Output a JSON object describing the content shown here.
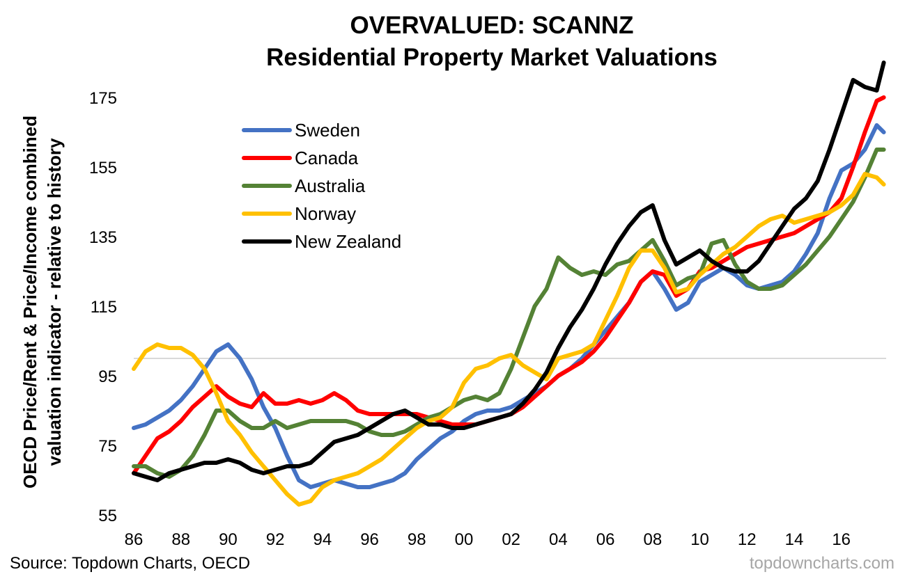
{
  "chart_data": {
    "type": "line",
    "title": "OVERVALUED: SCANNZ",
    "subtitle": "Residential Property Market Valuations",
    "ylabel": "OECD Price/Rent & Price/Income combined valuation indicator - relative to history",
    "ylabel_line1": "OECD Price/Rent & Price/Income combined",
    "ylabel_line2": "valuation indicator - relative to history",
    "xlabel": "",
    "ylim": [
      55,
      185
    ],
    "yticks": [
      55,
      75,
      95,
      115,
      135,
      155,
      175
    ],
    "xlim": [
      1986,
      2017.9
    ],
    "xticks": [
      1986,
      1988,
      1990,
      1992,
      1994,
      1996,
      1998,
      2000,
      2002,
      2004,
      2006,
      2008,
      2010,
      2012,
      2014,
      2016
    ],
    "xtick_labels": [
      "86",
      "88",
      "90",
      "92",
      "94",
      "96",
      "98",
      "00",
      "02",
      "04",
      "06",
      "08",
      "10",
      "12",
      "14",
      "16"
    ],
    "reference_line": 100,
    "legend_position": "top-left",
    "series": [
      {
        "name": "Sweden",
        "color": "#4472C4",
        "x": [
          1986,
          1986.5,
          1987,
          1987.5,
          1988,
          1988.5,
          1989,
          1989.5,
          1990,
          1990.5,
          1991,
          1991.5,
          1992,
          1992.5,
          1993,
          1993.5,
          1994,
          1994.5,
          1995,
          1995.5,
          1996,
          1996.5,
          1997,
          1997.5,
          1998,
          1998.5,
          1999,
          1999.5,
          2000,
          2000.5,
          2001,
          2001.5,
          2002,
          2002.5,
          2003,
          2003.5,
          2004,
          2004.5,
          2005,
          2005.5,
          2006,
          2006.5,
          2007,
          2007.5,
          2008,
          2008.5,
          2009,
          2009.5,
          2010,
          2010.5,
          2011,
          2011.5,
          2012,
          2012.5,
          2013,
          2013.5,
          2014,
          2014.5,
          2015,
          2015.5,
          2016,
          2016.5,
          2017,
          2017.5,
          2017.8
        ],
        "values": [
          80,
          81,
          83,
          85,
          88,
          92,
          97,
          102,
          104,
          100,
          94,
          86,
          80,
          72,
          65,
          63,
          64,
          65,
          64,
          63,
          63,
          64,
          65,
          67,
          71,
          74,
          77,
          79,
          82,
          84,
          85,
          85,
          86,
          88,
          90,
          92,
          95,
          97,
          100,
          104,
          108,
          112,
          116,
          122,
          125,
          120,
          114,
          116,
          122,
          124,
          126,
          124,
          121,
          120,
          121,
          122,
          125,
          130,
          136,
          146,
          154,
          156,
          160,
          167,
          165
        ]
      },
      {
        "name": "Canada",
        "color": "#FF0000",
        "x": [
          1986,
          1986.5,
          1987,
          1987.5,
          1988,
          1988.5,
          1989,
          1989.5,
          1990,
          1990.5,
          1991,
          1991.5,
          1992,
          1992.5,
          1993,
          1993.5,
          1994,
          1994.5,
          1995,
          1995.5,
          1996,
          1996.5,
          1997,
          1997.5,
          1998,
          1998.5,
          1999,
          1999.5,
          2000,
          2000.5,
          2001,
          2001.5,
          2002,
          2002.5,
          2003,
          2003.5,
          2004,
          2004.5,
          2005,
          2005.5,
          2006,
          2006.5,
          2007,
          2007.5,
          2008,
          2008.5,
          2009,
          2009.5,
          2010,
          2010.5,
          2011,
          2011.5,
          2012,
          2012.5,
          2013,
          2013.5,
          2014,
          2014.5,
          2015,
          2015.5,
          2016,
          2016.5,
          2017,
          2017.5,
          2017.8
        ],
        "values": [
          67,
          72,
          77,
          79,
          82,
          86,
          89,
          92,
          89,
          87,
          86,
          90,
          87,
          87,
          88,
          87,
          88,
          90,
          88,
          85,
          84,
          84,
          84,
          84,
          84,
          83,
          82,
          81,
          81,
          81,
          82,
          83,
          84,
          86,
          89,
          92,
          95,
          97,
          99,
          102,
          106,
          111,
          116,
          122,
          125,
          124,
          118,
          120,
          125,
          126,
          128,
          130,
          132,
          133,
          134,
          135,
          136,
          138,
          140,
          142,
          146,
          155,
          165,
          174,
          175
        ]
      },
      {
        "name": "Australia",
        "color": "#548235",
        "x": [
          1986,
          1986.5,
          1987,
          1987.5,
          1988,
          1988.5,
          1989,
          1989.5,
          1990,
          1990.5,
          1991,
          1991.5,
          1992,
          1992.5,
          1993,
          1993.5,
          1994,
          1994.5,
          1995,
          1995.5,
          1996,
          1996.5,
          1997,
          1997.5,
          1998,
          1998.5,
          1999,
          1999.5,
          2000,
          2000.5,
          2001,
          2001.5,
          2002,
          2002.5,
          2003,
          2003.5,
          2004,
          2004.5,
          2005,
          2005.5,
          2006,
          2006.5,
          2007,
          2007.5,
          2008,
          2008.5,
          2009,
          2009.5,
          2010,
          2010.5,
          2011,
          2011.5,
          2012,
          2012.5,
          2013,
          2013.5,
          2014,
          2014.5,
          2015,
          2015.5,
          2016,
          2016.5,
          2017,
          2017.5,
          2017.8
        ],
        "values": [
          69,
          69,
          67,
          66,
          68,
          72,
          78,
          85,
          85,
          82,
          80,
          80,
          82,
          80,
          81,
          82,
          82,
          82,
          82,
          81,
          79,
          78,
          78,
          79,
          81,
          83,
          84,
          86,
          88,
          89,
          88,
          90,
          97,
          106,
          115,
          120,
          129,
          126,
          124,
          125,
          124,
          127,
          128,
          131,
          134,
          128,
          121,
          123,
          124,
          133,
          134,
          127,
          122,
          120,
          120,
          121,
          124,
          127,
          131,
          135,
          140,
          145,
          152,
          160,
          160
        ]
      },
      {
        "name": "Norway",
        "color": "#FFC000",
        "x": [
          1986,
          1986.5,
          1987,
          1987.5,
          1988,
          1988.5,
          1989,
          1989.5,
          1990,
          1990.5,
          1991,
          1991.5,
          1992,
          1992.5,
          1993,
          1993.5,
          1994,
          1994.5,
          1995,
          1995.5,
          1996,
          1996.5,
          1997,
          1997.5,
          1998,
          1998.5,
          1999,
          1999.5,
          2000,
          2000.5,
          2001,
          2001.5,
          2002,
          2002.5,
          2003,
          2003.5,
          2004,
          2004.5,
          2005,
          2005.5,
          2006,
          2006.5,
          2007,
          2007.5,
          2008,
          2008.5,
          2009,
          2009.5,
          2010,
          2010.5,
          2011,
          2011.5,
          2012,
          2012.5,
          2013,
          2013.5,
          2014,
          2014.5,
          2015,
          2015.5,
          2016,
          2016.5,
          2017,
          2017.5,
          2017.8
        ],
        "values": [
          97,
          102,
          104,
          103,
          103,
          101,
          97,
          90,
          82,
          78,
          73,
          69,
          65,
          61,
          58,
          59,
          63,
          65,
          66,
          67,
          69,
          71,
          74,
          77,
          80,
          82,
          83,
          86,
          93,
          97,
          98,
          100,
          101,
          98,
          96,
          94,
          100,
          101,
          102,
          104,
          111,
          118,
          126,
          131,
          131,
          126,
          119,
          120,
          124,
          127,
          130,
          132,
          135,
          138,
          140,
          141,
          139,
          140,
          141,
          142,
          144,
          147,
          153,
          152,
          150
        ]
      },
      {
        "name": "New Zealand",
        "color": "#000000",
        "x": [
          1986,
          1986.5,
          1987,
          1987.5,
          1988,
          1988.5,
          1989,
          1989.5,
          1990,
          1990.5,
          1991,
          1991.5,
          1992,
          1992.5,
          1993,
          1993.5,
          1994,
          1994.5,
          1995,
          1995.5,
          1996,
          1996.5,
          1997,
          1997.5,
          1998,
          1998.5,
          1999,
          1999.5,
          2000,
          2000.5,
          2001,
          2001.5,
          2002,
          2002.5,
          2003,
          2003.5,
          2004,
          2004.5,
          2005,
          2005.5,
          2006,
          2006.5,
          2007,
          2007.5,
          2008,
          2008.5,
          2009,
          2009.5,
          2010,
          2010.5,
          2011,
          2011.5,
          2012,
          2012.5,
          2013,
          2013.5,
          2014,
          2014.5,
          2015,
          2015.5,
          2016,
          2016.5,
          2017,
          2017.5,
          2017.8
        ],
        "values": [
          67,
          66,
          65,
          67,
          68,
          69,
          70,
          70,
          71,
          70,
          68,
          67,
          68,
          69,
          69,
          70,
          73,
          76,
          77,
          78,
          80,
          82,
          84,
          85,
          83,
          81,
          81,
          80,
          80,
          81,
          82,
          83,
          84,
          87,
          91,
          96,
          103,
          109,
          114,
          120,
          127,
          133,
          138,
          142,
          144,
          134,
          127,
          129,
          131,
          128,
          126,
          125,
          125,
          128,
          133,
          138,
          143,
          146,
          151,
          160,
          170,
          180,
          178,
          177,
          185
        ]
      }
    ]
  },
  "footer": {
    "source": "Source: Topdown Charts, OECD",
    "watermark": "topdowncharts.com"
  }
}
